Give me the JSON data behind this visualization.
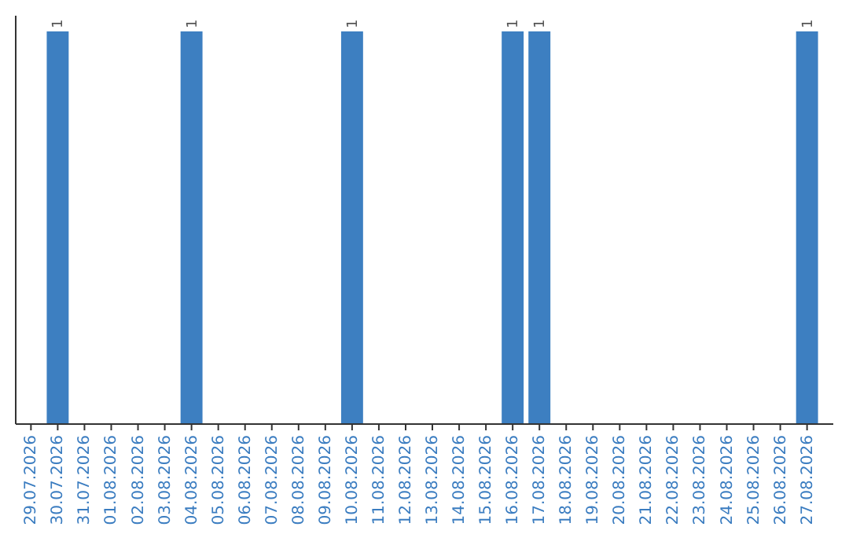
{
  "chart_data": {
    "type": "bar",
    "categories": [
      "29.07.2026",
      "30.07.2026",
      "31.07.2026",
      "01.08.2026",
      "02.08.2026",
      "03.08.2026",
      "04.08.2026",
      "05.08.2026",
      "06.08.2026",
      "07.08.2026",
      "08.08.2026",
      "09.08.2026",
      "10.08.2026",
      "11.08.2026",
      "12.08.2026",
      "13.08.2026",
      "14.08.2026",
      "15.08.2026",
      "16.08.2026",
      "17.08.2026",
      "18.08.2026",
      "19.08.2026",
      "20.08.2026",
      "21.08.2026",
      "22.08.2026",
      "23.08.2026",
      "24.08.2026",
      "25.08.2026",
      "26.08.2026",
      "27.08.2026"
    ],
    "values": [
      0,
      1,
      0,
      0,
      0,
      0,
      1,
      0,
      0,
      0,
      0,
      0,
      1,
      0,
      0,
      0,
      0,
      0,
      1,
      1,
      0,
      0,
      0,
      0,
      0,
      0,
      0,
      0,
      0,
      1
    ],
    "value_labels": [
      null,
      "1",
      null,
      null,
      null,
      null,
      "1",
      null,
      null,
      null,
      null,
      null,
      "1",
      null,
      null,
      null,
      null,
      null,
      "1",
      "1",
      null,
      null,
      null,
      null,
      null,
      null,
      null,
      null,
      null,
      "1"
    ],
    "color": "#3d7fc1",
    "grid": false
  }
}
